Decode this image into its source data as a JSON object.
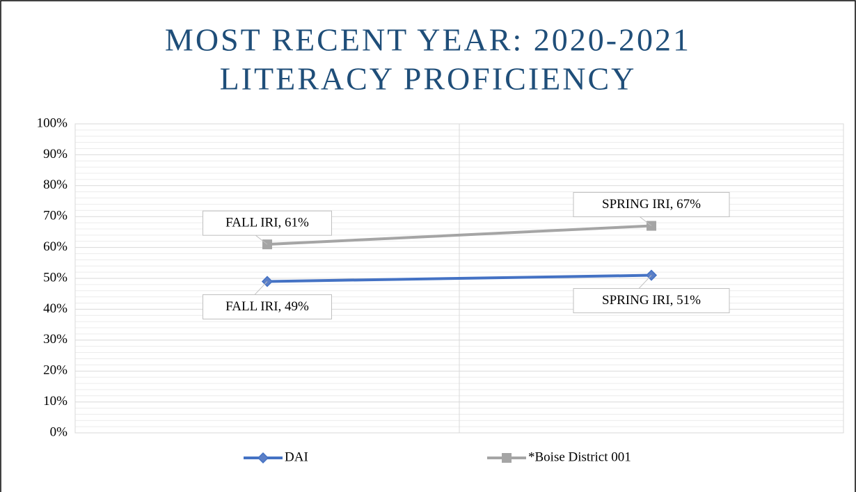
{
  "chart_data": {
    "type": "line",
    "title": [
      "MOST RECENT YEAR: 2020-2021",
      "LITERACY PROFICIENCY"
    ],
    "categories": [
      null,
      null
    ],
    "series": [
      {
        "name": "DAI",
        "color": "#4472c4",
        "values": [
          49,
          51
        ],
        "value_labels": [
          "FALL IRI, 49%",
          "SPRING IRI, 51%"
        ]
      },
      {
        "name": "*Boise District 001",
        "color": "#a5a5a5",
        "values": [
          61,
          67
        ],
        "value_labels": [
          "FALL IRI, 61%",
          "SPRING IRI, 67%"
        ]
      }
    ],
    "ylim": [
      0,
      100
    ],
    "yticks": [
      {
        "value": 0,
        "label": "0%"
      },
      {
        "value": 10,
        "label": "10%"
      },
      {
        "value": 20,
        "label": "20%"
      },
      {
        "value": 30,
        "label": "30%"
      },
      {
        "value": 40,
        "label": "40%"
      },
      {
        "value": 50,
        "label": "50%"
      },
      {
        "value": 60,
        "label": "60%"
      },
      {
        "value": 70,
        "label": "70%"
      },
      {
        "value": 80,
        "label": "80%"
      },
      {
        "value": 90,
        "label": "90%"
      },
      {
        "value": 100,
        "label": "100%"
      }
    ],
    "grid": true,
    "legend": "bottom"
  }
}
